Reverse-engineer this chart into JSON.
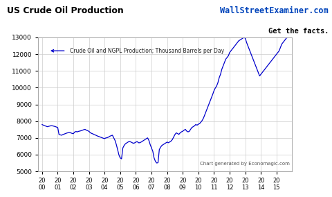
{
  "title": "US Crude Oil Production",
  "watermark_line1": "WallStreetExaminer.com",
  "watermark_line2": "Get the facts.",
  "legend_label": "Crude Oil and NGPL Production; Thousand Barrels per Day",
  "source_label": "Chart generated by Economagic.com",
  "line_color": "#0000CC",
  "bg_color": "#FFFFFF",
  "plot_bg_color": "#FFFFFF",
  "grid_color": "#CCCCCC",
  "ylim": [
    5000,
    13000
  ],
  "yticks": [
    5000,
    6000,
    7000,
    8000,
    9000,
    10000,
    11000,
    12000,
    13000
  ],
  "x_labels": [
    "20\n00",
    "20\n01",
    "20\n02",
    "20\n03",
    "20\n04",
    "20\n05",
    "20\n06",
    "20\n07",
    "20\n08",
    "20\n09",
    "20\n10",
    "20\n11",
    "20\n12",
    "20\n13",
    "20\n14",
    "20\n15"
  ],
  "data_y": [
    7800,
    7760,
    7730,
    7700,
    7670,
    7690,
    7710,
    7730,
    7720,
    7700,
    7680,
    7650,
    7620,
    7200,
    7180,
    7160,
    7200,
    7230,
    7260,
    7290,
    7310,
    7330,
    7300,
    7270,
    7250,
    7350,
    7380,
    7360,
    7390,
    7410,
    7430,
    7460,
    7490,
    7510,
    7460,
    7430,
    7390,
    7310,
    7270,
    7240,
    7200,
    7170,
    7130,
    7100,
    7070,
    7040,
    7010,
    6980,
    6960,
    7000,
    7010,
    7050,
    7100,
    7130,
    7160,
    7000,
    6850,
    6600,
    6300,
    5980,
    5800,
    5750,
    6400,
    6550,
    6650,
    6700,
    6750,
    6800,
    6760,
    6720,
    6680,
    6700,
    6750,
    6780,
    6710,
    6710,
    6750,
    6800,
    6850,
    6900,
    6950,
    7000,
    6850,
    6600,
    6400,
    6200,
    5800,
    5600,
    5500,
    5520,
    6300,
    6450,
    6550,
    6600,
    6650,
    6700,
    6750,
    6710,
    6760,
    6810,
    6900,
    7050,
    7200,
    7300,
    7260,
    7210,
    7300,
    7360,
    7400,
    7460,
    7510,
    7410,
    7360,
    7390,
    7510,
    7620,
    7670,
    7720,
    7800,
    7760,
    7820,
    7860,
    7950,
    8050,
    8200,
    8400,
    8600,
    8800,
    9000,
    9200,
    9400,
    9600,
    9820,
    9980,
    10100,
    10300,
    10600,
    10800,
    11100,
    11300,
    11500,
    11700,
    11800,
    11900,
    12100,
    12200,
    12300,
    12400,
    12500,
    12600,
    12700,
    12800,
    12850,
    12900,
    12950,
    13000,
    12950,
    12700,
    12500,
    12300,
    12100,
    11900,
    11700,
    11500,
    11300,
    11100,
    10900,
    10700,
    10800,
    10900,
    11000,
    11100,
    11200,
    11300,
    11400,
    11500,
    11600,
    11700,
    11800,
    11900,
    12000,
    12100,
    12200,
    12400,
    12600,
    12700,
    12800,
    12900,
    13000,
    13050,
    13080,
    13100
  ]
}
